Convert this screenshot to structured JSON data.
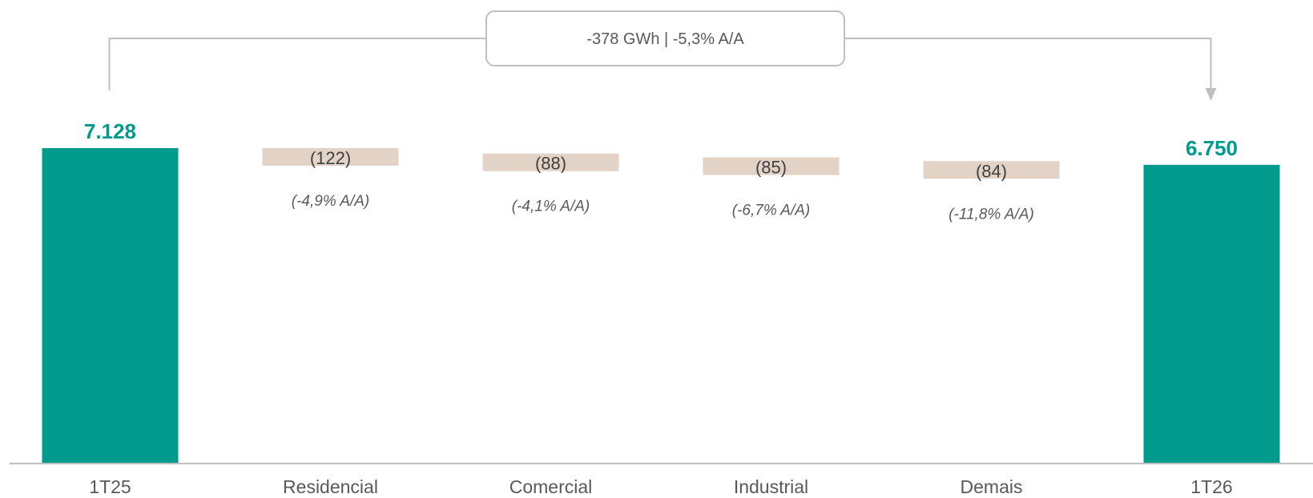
{
  "chart_data": {
    "type": "waterfall",
    "title": "",
    "xlabel": "",
    "ylabel": "",
    "categories": [
      "1T25",
      "Residencial",
      "Comercial",
      "Industrial",
      "Demais",
      "1T26"
    ],
    "values": [
      7128,
      -122,
      -88,
      -85,
      -84,
      6750
    ],
    "kinds": [
      "total",
      "delta",
      "delta",
      "delta",
      "delta",
      "total"
    ],
    "value_labels": [
      "7.128",
      "(122)",
      "(88)",
      "(85)",
      "(84)",
      "6.750"
    ],
    "pct_labels": [
      "",
      "(-4,9% A/A)",
      "(-4,1% A/A)",
      "(-6,7% A/A)",
      "(-11,8% A/A)",
      ""
    ],
    "summary_label": "-378 GWh | -5,3% A/A",
    "colors": {
      "total": "#009B8D",
      "delta": "#E2D3C6",
      "axis": "#BFBFBF",
      "connector": "#BFBFBF"
    }
  }
}
